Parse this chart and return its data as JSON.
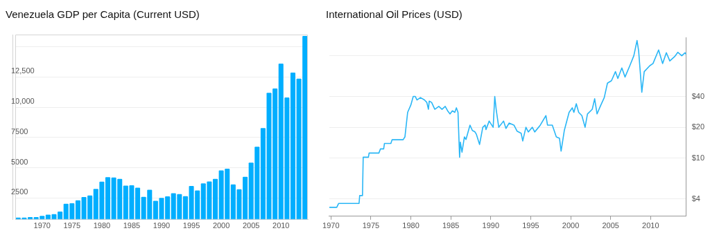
{
  "chart_data": [
    {
      "type": "bar",
      "title": "Venezuela GDP per Capita (Current USD)",
      "x": [
        1966,
        1967,
        1968,
        1969,
        1970,
        1971,
        1972,
        1973,
        1974,
        1975,
        1976,
        1977,
        1978,
        1979,
        1980,
        1981,
        1982,
        1983,
        1984,
        1985,
        1986,
        1987,
        1988,
        1989,
        1990,
        1991,
        1992,
        1993,
        1994,
        1995,
        1996,
        1997,
        1998,
        1999,
        2000,
        2001,
        2002,
        2003,
        2004,
        2005,
        2006,
        2007,
        2008,
        2009,
        2010,
        2011,
        2012,
        2013,
        2014
      ],
      "values": [
        880,
        880,
        920,
        920,
        1010,
        1120,
        1160,
        1380,
        2020,
        2060,
        2300,
        2570,
        2700,
        3240,
        3840,
        4210,
        4190,
        4080,
        3510,
        3550,
        3350,
        2590,
        3180,
        2260,
        2500,
        2630,
        2890,
        2810,
        2650,
        3490,
        3110,
        3700,
        3860,
        4080,
        4780,
        4910,
        3620,
        3220,
        4250,
        5410,
        6730,
        8280,
        11190,
        11540,
        13600,
        10800,
        12860,
        12360,
        15880
      ],
      "color": "#00aeff",
      "xlim": [
        1965.5,
        2014.5
      ],
      "xticks": [
        1970,
        1975,
        1980,
        1985,
        1990,
        1995,
        2000,
        2005,
        2010
      ],
      "ylim": [
        700,
        16000
      ],
      "yticks": [
        2500,
        5000,
        7500,
        {
          "value": 10000,
          "label": "10,000"
        },
        {
          "value": 12500,
          "label": "12,500"
        },
        {
          "value": 15000,
          "label": null
        }
      ],
      "grid": "y"
    },
    {
      "type": "line",
      "title": "International Oil Prices (USD)",
      "series": [
        {
          "color": "#29b6f6",
          "axis": "y2",
          "x": [
            1969.8,
            1970.73,
            1970.96,
            1973.52,
            1973.6,
            1973.95,
            1974.04,
            1974.69,
            1974.78,
            1976.0,
            1976.2,
            1976.6,
            1976.7,
            1977.5,
            1977.65,
            1979.03,
            1979.26,
            1979.6,
            1980.0,
            1980.3,
            1980.56,
            1980.77,
            1981.2,
            1981.7,
            1982.0,
            1982.2,
            1982.3,
            1982.6,
            1983.0,
            1983.5,
            1983.9,
            1984.3,
            1984.6,
            1984.9,
            1985.2,
            1985.5,
            1985.7,
            1985.9,
            1986.1,
            1986.2,
            1986.4,
            1986.7,
            1986.9,
            1987.4,
            1987.7,
            1988.0,
            1988.2,
            1988.6,
            1989.0,
            1989.3,
            1989.4,
            1989.8,
            1990.3,
            1990.5,
            1990.7,
            1991.0,
            1991.6,
            1991.9,
            1992.3,
            1992.9,
            1993.3,
            1993.8,
            1994.0,
            1994.4,
            1994.7,
            1995.2,
            1995.5,
            1996.2,
            1996.9,
            1997.1,
            1997.7,
            1998.2,
            1998.6,
            1998.8,
            1999.2,
            1999.8,
            2000.2,
            2000.4,
            2000.7,
            2001.0,
            2001.4,
            2001.8,
            2002.1,
            2002.7,
            2003.0,
            2003.3,
            2003.7,
            2004.2,
            2004.6,
            2005.1,
            2005.6,
            2005.9,
            2006.4,
            2006.8,
            2007.4,
            2007.9,
            2008.3,
            2008.5,
            2008.9,
            2009.2,
            2009.9,
            2010.3,
            2011.0,
            2011.5,
            2011.97,
            2012.4,
            2013.0,
            2013.4,
            2013.9,
            2014.3,
            2014.45
          ],
          "values": [
            3.3,
            3.3,
            3.6,
            3.6,
            4.3,
            4.3,
            10.2,
            10.2,
            11.2,
            11.2,
            12.3,
            12.3,
            13.9,
            13.9,
            15.1,
            15.1,
            16.1,
            28,
            33,
            40,
            40,
            37,
            39,
            37,
            35,
            30,
            36,
            35,
            30,
            32,
            30,
            32,
            29,
            27,
            29,
            28,
            31,
            28,
            10.2,
            14.3,
            11.4,
            16.1,
            15.2,
            21,
            18.6,
            18.1,
            17.1,
            13.6,
            20,
            21,
            19,
            23,
            20,
            40,
            29,
            20,
            23,
            19.5,
            22,
            21,
            18.3,
            17.5,
            14.7,
            20,
            18,
            20,
            18,
            21,
            26,
            21,
            21,
            16.1,
            15.6,
            11.7,
            18.6,
            28,
            31,
            28,
            34,
            28,
            26,
            20,
            27,
            30,
            38,
            27,
            32,
            39,
            54,
            57,
            70,
            60,
            76,
            62,
            80,
            100,
            141,
            112,
            44,
            70,
            80,
            84,
            114,
            84,
            107,
            89,
            98,
            108,
            100,
            107,
            103
          ]
        }
      ],
      "xlim": [
        1969.8,
        2014.45
      ],
      "xticks": [
        1970,
        1975,
        1980,
        1985,
        1990,
        1995,
        2000,
        2005,
        2010
      ],
      "log": "y2",
      "y2lim": [
        2.7,
        150
      ],
      "y2ticks": [
        {
          "value": 4,
          "label": "$4"
        },
        {
          "value": 10,
          "label": "$10"
        },
        {
          "value": 20,
          "label": "$20"
        },
        {
          "value": 40,
          "label": "$40"
        },
        {
          "value": 100,
          "label": null
        }
      ],
      "grid": "y"
    }
  ]
}
